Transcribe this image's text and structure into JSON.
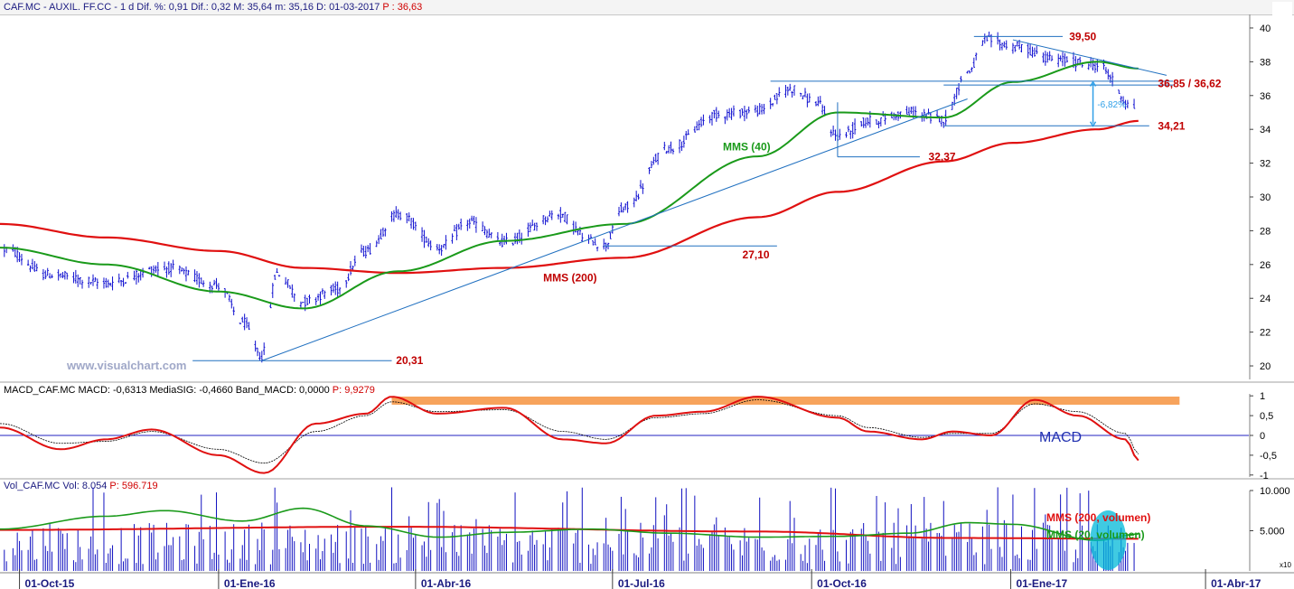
{
  "price_panel": {
    "header": {
      "text": "CAF.MC - AUXIL. FF.CC - 1 d Dif. %: 0,91 Dif.: 0,32 M: 35,64 m: 35,16 D: 01-03-2017",
      "last": "P : 36,63"
    },
    "watermark": "www.visualchart.com",
    "annotations": {
      "high": "39,50",
      "resistance": "36,85 / 36,62",
      "support_recent": "34,21",
      "support_oct": "32,37",
      "support_jul": "27,10",
      "low": "20,31",
      "drop_pct": "-6,82%",
      "mms40": "MMS (40)",
      "mms200": "MMS (200)"
    },
    "colors": {
      "price": "#1010d0",
      "mms40": "#1a9a1a",
      "mms200": "#e01010",
      "level_lines": "#2070c0",
      "label": "#c00000"
    }
  },
  "macd_panel": {
    "header": {
      "text": "MACD_CAF.MC MACD: -0,6313 MediaSIG: -0,4660 Band_MACD: 0,0000",
      "last": "P: 9,9279"
    },
    "label": "MACD",
    "colors": {
      "macd": "#e01010",
      "signal": "#000000",
      "zero": "#2020c0",
      "band": "#f7a35c"
    }
  },
  "volume_panel": {
    "header": {
      "text": "Vol_CAF.MC Vol: 8.054",
      "last": "P: 596.719"
    },
    "labels": {
      "mms200": "MMS (200, volumen)",
      "mms20": "MMS (20, volumen)"
    },
    "scale_note": "x10",
    "colors": {
      "bars": "#1010c0",
      "mms200": "#e01010",
      "mms20": "#1a9a1a",
      "highlight": "#00b8d8"
    }
  },
  "chart_data": [
    {
      "type": "line",
      "title": "CAF.MC - AUXIL. FF.CC - 1 d",
      "x_ticks": [
        "01-Oct-15",
        "01-Ene-16",
        "01-Abr-16",
        "01-Jul-16",
        "01-Oct-16",
        "01-Ene-17",
        "01-Abr-17"
      ],
      "x_range": [
        "2015-09-22",
        "2017-04-21"
      ],
      "ylim": [
        19.2,
        40.8
      ],
      "y_ticks": [
        "20",
        "22",
        "24",
        "26",
        "28",
        "30",
        "32",
        "34",
        "36",
        "38",
        "40"
      ],
      "price_anchors": {
        "x": [
          "2015-09-24",
          "2015-10-14",
          "2015-11-10",
          "2015-12-07",
          "2016-01-01",
          "2016-01-12",
          "2016-01-21",
          "2016-01-28",
          "2016-02-09",
          "2016-02-24",
          "2016-03-09",
          "2016-03-24",
          "2016-04-12",
          "2016-04-26",
          "2016-05-12",
          "2016-06-06",
          "2016-06-21",
          "2016-06-27",
          "2016-07-06",
          "2016-07-27",
          "2016-08-19",
          "2016-09-06",
          "2016-09-22",
          "2016-10-03",
          "2016-10-13",
          "2016-10-28",
          "2016-11-15",
          "2016-12-01",
          "2016-12-12",
          "2016-12-21",
          "2017-01-02",
          "2017-01-23",
          "2017-02-10",
          "2017-02-27"
        ],
        "y": [
          26.9,
          25.4,
          24.9,
          25.8,
          24.8,
          22.6,
          20.6,
          25.5,
          23.8,
          24.5,
          26.8,
          29.0,
          27.0,
          28.5,
          27.3,
          29.0,
          27.4,
          27.1,
          29.3,
          32.9,
          34.9,
          35.1,
          36.4,
          35.6,
          33.6,
          34.5,
          35.0,
          34.6,
          37.4,
          39.3,
          38.9,
          38.1,
          37.8,
          35.3
        ]
      },
      "series": [
        {
          "name": "MMS (40)",
          "x": [
            "2015-09-22",
            "2015-11-10",
            "2016-01-01",
            "2016-02-09",
            "2016-03-24",
            "2016-05-12",
            "2016-07-06",
            "2016-09-06",
            "2016-10-13",
            "2016-12-01",
            "2017-01-02",
            "2017-02-10",
            "2017-03-01"
          ],
          "y": [
            27.0,
            26.0,
            24.4,
            23.4,
            25.6,
            27.4,
            28.4,
            32.4,
            35.0,
            34.7,
            36.8,
            38.0,
            37.6
          ]
        },
        {
          "name": "MMS (200)",
          "x": [
            "2015-09-22",
            "2015-11-10",
            "2016-01-01",
            "2016-02-09",
            "2016-03-24",
            "2016-05-12",
            "2016-07-06",
            "2016-09-06",
            "2016-10-13",
            "2016-12-01",
            "2017-01-02",
            "2017-02-10",
            "2017-03-01"
          ],
          "y": [
            28.4,
            27.6,
            26.8,
            25.8,
            25.5,
            25.8,
            26.4,
            28.8,
            30.3,
            32.1,
            33.2,
            34.0,
            34.5
          ]
        }
      ],
      "levels": [
        {
          "label": "39,50",
          "y": 39.5
        },
        {
          "label": "36,85 / 36,62",
          "y": 36.85
        },
        {
          "label": "34,21",
          "y": 34.21
        },
        {
          "label": "32,37",
          "y": 32.37
        },
        {
          "label": "27,10",
          "y": 27.1
        },
        {
          "label": "20,31",
          "y": 20.31
        }
      ]
    },
    {
      "type": "line",
      "title": "MACD_CAF.MC",
      "ylim": [
        -1.05,
        1.05
      ],
      "y_ticks": [
        "1",
        "0,5",
        "0",
        "-0,5",
        "-1"
      ],
      "series": [
        {
          "name": "MACD",
          "x": [
            "2015-09-22",
            "2015-10-20",
            "2015-11-10",
            "2015-12-01",
            "2016-01-01",
            "2016-01-22",
            "2016-02-15",
            "2016-03-09",
            "2016-03-21",
            "2016-04-11",
            "2016-05-12",
            "2016-06-08",
            "2016-06-28",
            "2016-07-21",
            "2016-08-12",
            "2016-09-06",
            "2016-10-13",
            "2016-10-27",
            "2016-11-21",
            "2016-12-05",
            "2016-12-23",
            "2017-01-12",
            "2017-02-01",
            "2017-02-23",
            "2017-03-01"
          ],
          "y": [
            0.2,
            -0.35,
            -0.1,
            0.15,
            -0.5,
            -0.95,
            0.3,
            0.55,
            0.98,
            0.55,
            0.7,
            -0.1,
            -0.2,
            0.5,
            0.6,
            0.98,
            0.45,
            0.1,
            -0.1,
            0.1,
            0.0,
            0.9,
            0.5,
            -0.1,
            -0.63
          ]
        },
        {
          "name": "MediaSIG",
          "x": [
            "2015-09-22",
            "2015-10-20",
            "2015-11-10",
            "2015-12-01",
            "2016-01-01",
            "2016-01-22",
            "2016-02-15",
            "2016-03-09",
            "2016-03-21",
            "2016-04-11",
            "2016-05-12",
            "2016-06-08",
            "2016-06-28",
            "2016-07-21",
            "2016-08-12",
            "2016-09-06",
            "2016-10-13",
            "2016-10-27",
            "2016-11-21",
            "2016-12-05",
            "2016-12-23",
            "2017-01-12",
            "2017-02-01",
            "2017-02-23",
            "2017-03-01"
          ],
          "y": [
            0.3,
            -0.2,
            -0.15,
            0.1,
            -0.35,
            -0.7,
            0.1,
            0.5,
            0.85,
            0.6,
            0.65,
            0.1,
            -0.1,
            0.45,
            0.55,
            0.9,
            0.5,
            0.2,
            -0.05,
            0.05,
            0.05,
            0.8,
            0.6,
            0.05,
            -0.47
          ]
        }
      ]
    },
    {
      "type": "bar",
      "title": "Vol_CAF.MC",
      "ylim": [
        0,
        10000
      ],
      "y_ticks": [
        "10.000",
        "5.000"
      ],
      "series": [
        {
          "name": "MMS (200, volumen)",
          "x": [
            "2015-09-22",
            "2016-03-21",
            "2016-09-06",
            "2016-12-05",
            "2017-03-01"
          ],
          "y": [
            5100,
            5500,
            4900,
            4100,
            4000
          ]
        },
        {
          "name": "MMS (20, volumen)",
          "x": [
            "2015-09-22",
            "2015-11-10",
            "2015-12-07",
            "2016-01-12",
            "2016-02-09",
            "2016-03-09",
            "2016-04-12",
            "2016-05-12",
            "2016-06-21",
            "2016-07-27",
            "2016-09-06",
            "2016-10-13",
            "2016-11-15",
            "2016-12-12",
            "2017-01-02",
            "2017-02-10",
            "2017-03-01"
          ],
          "y": [
            5200,
            6800,
            7500,
            6200,
            7800,
            5600,
            4200,
            4800,
            5200,
            4700,
            4200,
            4300,
            4700,
            6000,
            5800,
            3800,
            4600
          ]
        }
      ]
    }
  ]
}
